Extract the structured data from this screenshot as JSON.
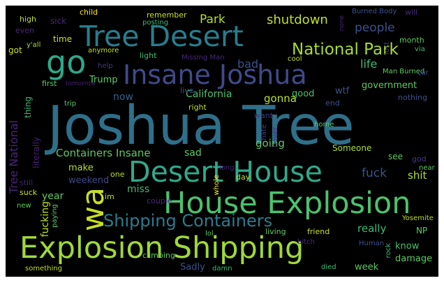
{
  "words": [
    {
      "text": "Joshua Tree",
      "color": "#2e6f8a"
    },
    {
      "text": "Explosion Shipping",
      "color": "#9fd93a"
    },
    {
      "text": "House Explosion",
      "color": "#4cc26c"
    },
    {
      "text": "Desert House",
      "color": "#31a88a"
    },
    {
      "text": "Insane Joshua",
      "color": "#404a8a"
    },
    {
      "text": "Tree Desert",
      "color": "#287d8e"
    },
    {
      "text": "go",
      "color": "#2ea88a"
    },
    {
      "text": "wa",
      "color": "#c8e020"
    },
    {
      "text": "Shipping Containers",
      "color": "#2c7c8e"
    },
    {
      "text": "National Park",
      "color": "#a8db34"
    },
    {
      "text": "Tree National",
      "color": "#482776"
    },
    {
      "text": "shutdown",
      "color": "#c2df23"
    },
    {
      "text": "Park",
      "color": "#b2dd2d"
    },
    {
      "text": "people",
      "color": "#3b528b"
    },
    {
      "text": "life",
      "color": "#3bbb75"
    },
    {
      "text": "bad",
      "color": "#3b528b"
    },
    {
      "text": "government",
      "color": "#5ec962"
    },
    {
      "text": "Trump",
      "color": "#5ec962"
    },
    {
      "text": "California",
      "color": "#4ac16d"
    },
    {
      "text": "now",
      "color": "#33638d"
    },
    {
      "text": "gonna",
      "color": "#bddf26"
    },
    {
      "text": "good",
      "color": "#4ac16d"
    },
    {
      "text": "wtf",
      "color": "#3b528b"
    },
    {
      "text": "going",
      "color": "#5ec962"
    },
    {
      "text": "Containers Insane",
      "color": "#5ec962"
    },
    {
      "text": "sad",
      "color": "#5ec962"
    },
    {
      "text": "fuck",
      "color": "#3b528b"
    },
    {
      "text": "shit",
      "color": "#addc30"
    },
    {
      "text": "make",
      "color": "#b4de2c"
    },
    {
      "text": "miss",
      "color": "#3bbb75"
    },
    {
      "text": "weekend",
      "color": "#3e4989"
    },
    {
      "text": "year",
      "color": "#5ec962"
    },
    {
      "text": "fucking",
      "color": "#bddf26"
    },
    {
      "text": "really",
      "color": "#3bbb75"
    },
    {
      "text": "know",
      "color": "#4ac16d"
    },
    {
      "text": "damage",
      "color": "#5ec962"
    },
    {
      "text": "week",
      "color": "#5ec962"
    },
    {
      "text": "Sadly",
      "color": "#3b528b"
    },
    {
      "text": "time",
      "color": "#c8e020"
    },
    {
      "text": "got",
      "color": "#c8e020"
    },
    {
      "text": "first",
      "color": "#5ec962"
    },
    {
      "text": "see",
      "color": "#5ec962"
    },
    {
      "text": "thing",
      "color": "#3bbb75"
    },
    {
      "text": "literally",
      "color": "#482173"
    },
    {
      "text": "Someone",
      "color": "#addc30"
    },
    {
      "text": "god",
      "color": "#443a83"
    },
    {
      "text": "want",
      "color": "#443a83"
    },
    {
      "text": "hate",
      "color": "#443a83"
    },
    {
      "text": "never",
      "color": "#482878"
    },
    {
      "text": "end",
      "color": "#3b528b"
    },
    {
      "text": "nothing",
      "color": "#3b528b"
    },
    {
      "text": "live",
      "color": "#3b528b"
    },
    {
      "text": "right",
      "color": "#bddf26"
    },
    {
      "text": "day",
      "color": "#bddf26"
    },
    {
      "text": "one",
      "color": "#bddf26"
    },
    {
      "text": "couple",
      "color": "#482878"
    },
    {
      "text": "im",
      "color": "#bddf26"
    },
    {
      "text": "long",
      "color": "#482878"
    },
    {
      "text": "whole",
      "color": "#fde725"
    },
    {
      "text": "bitch",
      "color": "#482878"
    },
    {
      "text": "friend",
      "color": "#c8e020"
    },
    {
      "text": "living",
      "color": "#5ec962"
    },
    {
      "text": "lol",
      "color": "#5ec962"
    },
    {
      "text": "climbing",
      "color": "#5ec962"
    },
    {
      "text": "damn",
      "color": "#3bbb75"
    },
    {
      "text": "died",
      "color": "#3bbb75"
    },
    {
      "text": "Human",
      "color": "#3b528b"
    },
    {
      "text": "rock",
      "color": "#3bbb75"
    },
    {
      "text": "NP",
      "color": "#5ec962"
    },
    {
      "text": "Yosemite",
      "color": "#bddf26"
    },
    {
      "text": "near",
      "color": "#5ec962"
    },
    {
      "text": "home",
      "color": "#5ec962"
    },
    {
      "text": "Man Burned",
      "color": "#5ec962"
    },
    {
      "text": "car",
      "color": "#3b528b"
    },
    {
      "text": "high",
      "color": "#bddf26"
    },
    {
      "text": "even",
      "color": "#482878"
    },
    {
      "text": "sick",
      "color": "#482878"
    },
    {
      "text": "child",
      "color": "#fde725"
    },
    {
      "text": "remember",
      "color": "#c8e020"
    },
    {
      "text": "posting",
      "color": "#3bbb75"
    },
    {
      "text": "y'all",
      "color": "#addc30"
    },
    {
      "text": "anymore",
      "color": "#bddf26"
    },
    {
      "text": "light",
      "color": "#3bbb75"
    },
    {
      "text": "Missing Man",
      "color": "#482878"
    },
    {
      "text": "help",
      "color": "#443a83"
    },
    {
      "text": "tomorrow",
      "color": "#482173"
    },
    {
      "text": "trip",
      "color": "#5ec962"
    },
    {
      "text": "still",
      "color": "#482173"
    },
    {
      "text": "suck",
      "color": "#c8e020"
    },
    {
      "text": "new",
      "color": "#5ec962"
    },
    {
      "text": "paying",
      "color": "#5ec962"
    },
    {
      "text": "something",
      "color": "#bddf26"
    },
    {
      "text": "cool",
      "color": "#bddf26"
    },
    {
      "text": "Burned Body",
      "color": "#3b528b"
    },
    {
      "text": "will",
      "color": "#482878"
    },
    {
      "text": "month",
      "color": "#5ec962"
    },
    {
      "text": "via",
      "color": "#3bbb75"
    },
    {
      "text": "none",
      "color": "#482878"
    },
    {
      "text": "lost",
      "color": "#443a83"
    }
  ]
}
